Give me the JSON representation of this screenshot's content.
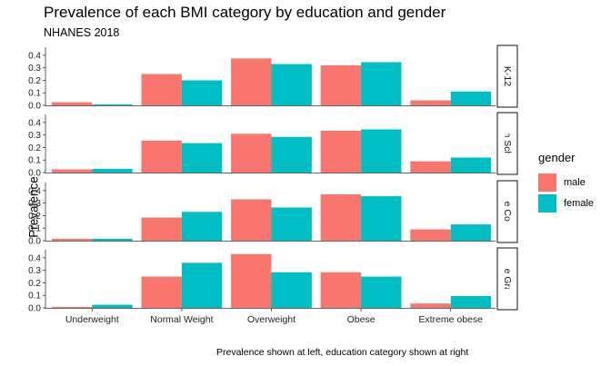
{
  "chart_data": {
    "type": "bar",
    "title": "Prevalence of each BMI category by education and gender",
    "subtitle": "NHANES 2018",
    "ylabel": "Prevalence",
    "caption": "Prevalence shown at left, education category shown at right",
    "categories": [
      "Underweight",
      "Normal Weight",
      "Overweight",
      "Obese",
      "Extreme obese"
    ],
    "yticks": [
      "0.0",
      "0.1",
      "0.2",
      "0.3",
      "0.4"
    ],
    "ylim": [
      0,
      0.45
    ],
    "legend": {
      "title": "gender",
      "position": "right"
    },
    "series_names": [
      "male",
      "female"
    ],
    "colors": {
      "male": "#F8766D",
      "female": "#00BFC4"
    },
    "grid": false,
    "panels": [
      {
        "strip": "K-12",
        "series": [
          {
            "name": "male",
            "values": [
              0.025,
              0.25,
              0.375,
              0.32,
              0.04
            ]
          },
          {
            "name": "female",
            "values": [
              0.008,
              0.2,
              0.33,
              0.345,
              0.11
            ]
          }
        ]
      },
      {
        "strip": "High School",
        "series": [
          {
            "name": "male",
            "values": [
              0.025,
              0.255,
              0.31,
              0.335,
              0.09
            ]
          },
          {
            "name": "female",
            "values": [
              0.03,
              0.235,
              0.285,
              0.345,
              0.12
            ]
          }
        ]
      },
      {
        "strip": "Some College",
        "series": [
          {
            "name": "male",
            "values": [
              0.015,
              0.185,
              0.33,
              0.37,
              0.09
            ]
          },
          {
            "name": "female",
            "values": [
              0.015,
              0.23,
              0.265,
              0.355,
              0.13
            ]
          }
        ]
      },
      {
        "strip": "College Graduate",
        "series": [
          {
            "name": "male",
            "values": [
              0.008,
              0.25,
              0.43,
              0.285,
              0.035
            ]
          },
          {
            "name": "female",
            "values": [
              0.025,
              0.36,
              0.285,
              0.25,
              0.095
            ]
          }
        ]
      }
    ]
  }
}
